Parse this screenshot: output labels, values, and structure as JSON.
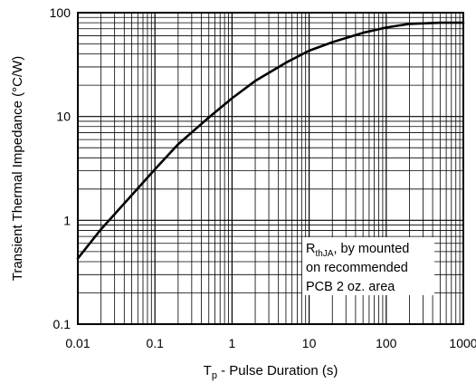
{
  "chart_data": {
    "type": "line",
    "xlabel_main": "T",
    "xlabel_sub": "p",
    "xlabel_rest": " - Pulse Duration (s)",
    "ylabel": "Transient Thermal Impedance (°C/W)",
    "x_scale": "log",
    "y_scale": "log",
    "xlim": [
      0.01,
      1000
    ],
    "ylim": [
      0.1,
      100
    ],
    "grid": true,
    "x_ticks": [
      0.01,
      0.1,
      1,
      10,
      100,
      1000
    ],
    "x_tick_labels": [
      "0.01",
      "0.1",
      "1",
      "10",
      "100",
      "1000"
    ],
    "y_ticks": [
      0.1,
      1,
      10,
      100
    ],
    "y_tick_labels": [
      "0.1",
      "1",
      "10",
      "100"
    ],
    "series": [
      {
        "color": "#000000",
        "x": [
          0.01,
          0.02,
          0.05,
          0.1,
          0.2,
          0.5,
          1,
          2,
          5,
          10,
          20,
          50,
          100,
          200,
          500,
          1000
        ],
        "y": [
          0.43,
          0.82,
          1.75,
          3.1,
          5.4,
          9.8,
          15,
          22,
          33,
          43,
          52,
          64,
          72,
          78,
          80,
          80
        ]
      }
    ],
    "annotation": {
      "line1_main": "R",
      "line1_sub": "thJA",
      "line1_rest": ", by mounted",
      "line2": "on recommended",
      "line3": "PCB 2 oz. area",
      "position": "bottom-right"
    }
  }
}
